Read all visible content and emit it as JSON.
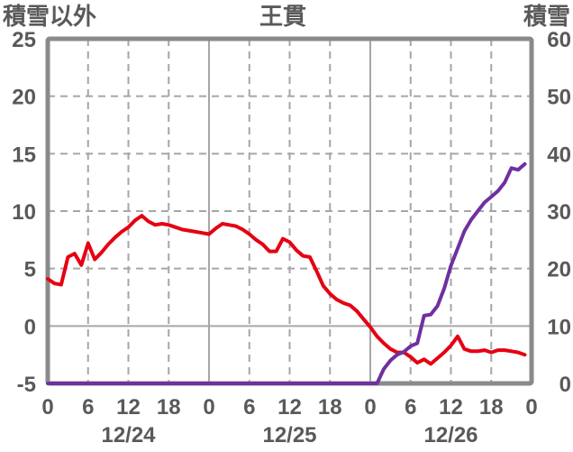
{
  "header": {
    "left_axis_label": "積雪以外",
    "title": "王貫",
    "right_axis_label": "積雪"
  },
  "colors": {
    "temp_line": "#e60012",
    "snow_line": "#7030a0",
    "axis_text": "#595959",
    "border": "#8a8a8a",
    "grid": "#a6a6a6"
  },
  "chart_data": {
    "type": "line",
    "title": "王貫",
    "grid": true,
    "x_axis": {
      "min": 0,
      "max": 72,
      "unit": "hour",
      "major_every": 6,
      "day_line_every": 24,
      "hour_labels": [
        "0",
        "6",
        "12",
        "18",
        "0",
        "6",
        "12",
        "18",
        "0",
        "6",
        "12",
        "18",
        "0"
      ]
    },
    "days": [
      "12/24",
      "12/25",
      "12/26"
    ],
    "left_axis": {
      "label": "積雪以外",
      "min": -5,
      "max": 25,
      "ticks": [
        25,
        20,
        15,
        10,
        5,
        0,
        -5
      ]
    },
    "right_axis": {
      "label": "積雪",
      "min": 0,
      "max": 60,
      "ticks": [
        60,
        50,
        40,
        30,
        20,
        10,
        0
      ]
    },
    "series": [
      {
        "name": "積雪以外",
        "key": "other-than-snow",
        "axis": "left",
        "color_key": "temp_line",
        "values": [
          4.1,
          3.7,
          3.6,
          6.0,
          6.3,
          5.3,
          7.2,
          5.8,
          6.4,
          7.1,
          7.7,
          8.2,
          8.6,
          9.2,
          9.6,
          9.1,
          8.8,
          8.9,
          8.8,
          8.6,
          8.4,
          8.3,
          8.2,
          8.1,
          8.0,
          8.5,
          8.9,
          8.8,
          8.7,
          8.4,
          8.0,
          7.5,
          7.1,
          6.5,
          6.5,
          7.6,
          7.3,
          6.6,
          6.1,
          6.0,
          4.8,
          3.5,
          2.8,
          2.3,
          2.0,
          1.8,
          1.3,
          0.6,
          -0.1,
          -0.9,
          -1.5,
          -2.0,
          -2.3,
          -2.3,
          -2.7,
          -3.2,
          -2.9,
          -3.3,
          -2.8,
          -2.3,
          -1.7,
          -0.9,
          -2.0,
          -2.2,
          -2.2,
          -2.1,
          -2.3,
          -2.1,
          -2.1,
          -2.2,
          -2.3,
          -2.5
        ]
      },
      {
        "name": "積雪",
        "key": "snow-depth",
        "axis": "right",
        "color_key": "snow_line",
        "values": [
          0,
          0,
          0,
          0,
          0,
          0,
          0,
          0,
          0,
          0,
          0,
          0,
          0,
          0,
          0,
          0,
          0,
          0,
          0,
          0,
          0,
          0,
          0,
          0,
          0,
          0,
          0,
          0,
          0,
          0,
          0,
          0,
          0,
          0,
          0,
          0,
          0,
          0,
          0,
          0,
          0,
          0,
          0,
          0,
          0,
          0,
          0,
          0,
          0,
          0,
          2.5,
          4,
          5,
          5.5,
          6.5,
          7,
          11.8,
          12,
          13.5,
          16.5,
          20.5,
          23.5,
          26.5,
          28.5,
          30,
          31.5,
          32.5,
          33.5,
          35,
          37.5,
          37.2,
          38.2
        ]
      }
    ]
  }
}
